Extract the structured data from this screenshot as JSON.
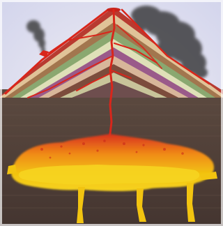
{
  "illustration": {
    "subject": "stratovolcano-cross-section",
    "layer_count": 10,
    "palette": {
      "sky": "#dfe0f2",
      "sky_glow": "#f4f1f4",
      "crust_top": "#5c4a40",
      "crust_bottom": "#4a3932",
      "lava": "#d9261b",
      "magma_hot": "#f2c410",
      "magma_mid": "#f08a18",
      "magma_edge": "#d8301c",
      "ash": "#3e3c40",
      "layers": [
        "#b83a30",
        "#e0c398",
        "#a2764e",
        "#8aa870",
        "#dfe0b8",
        "#9a5a8a",
        "#d8b69a",
        "#7c4c3c",
        "#c8c49a",
        "#6e4e4e"
      ]
    },
    "parts": [
      "main-crater",
      "side-vent",
      "central-conduit",
      "side-dikes",
      "magma-chamber",
      "feeder-dikes",
      "ash-plume-main",
      "ash-plume-side",
      "crust"
    ]
  }
}
